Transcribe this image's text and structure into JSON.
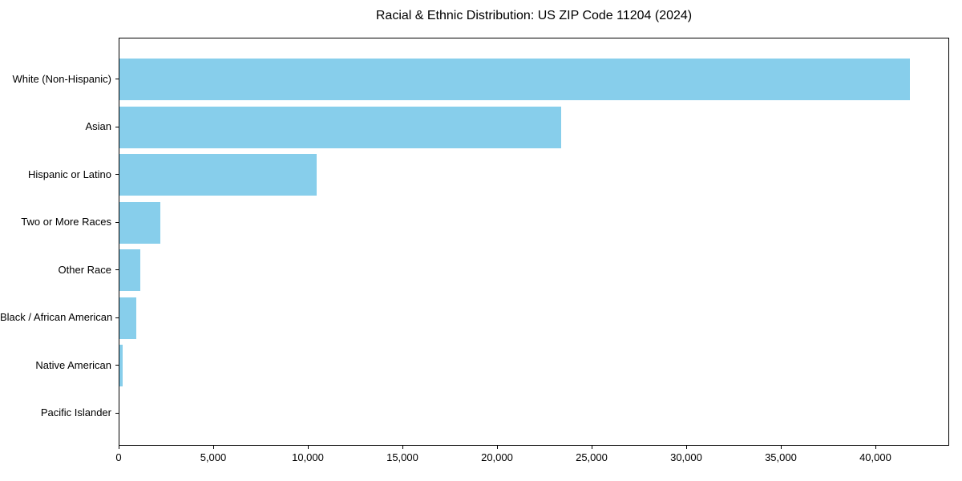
{
  "chart_data": {
    "type": "bar",
    "orientation": "horizontal",
    "title": "Racial & Ethnic Distribution: US ZIP Code 11204 (2024)",
    "categories": [
      "White (Non-Hispanic)",
      "Asian",
      "Hispanic or Latino",
      "Two or More Races",
      "Other Race",
      "Black / African American",
      "Native American",
      "Pacific Islander"
    ],
    "values": [
      41800,
      23350,
      10440,
      2150,
      1090,
      890,
      190,
      0
    ],
    "xlabel": "",
    "ylabel": "",
    "xlim": [
      0,
      43900
    ],
    "xticks": [
      0,
      5000,
      10000,
      15000,
      20000,
      25000,
      30000,
      35000,
      40000
    ],
    "xtick_labels": [
      "0",
      "5,000",
      "10,000",
      "15,000",
      "20,000",
      "25,000",
      "30,000",
      "35,000",
      "40,000"
    ],
    "bar_color": "#87CEEB",
    "background_color": "#ffffff",
    "spine_color": "#000000",
    "grid": false,
    "legend": null
  }
}
